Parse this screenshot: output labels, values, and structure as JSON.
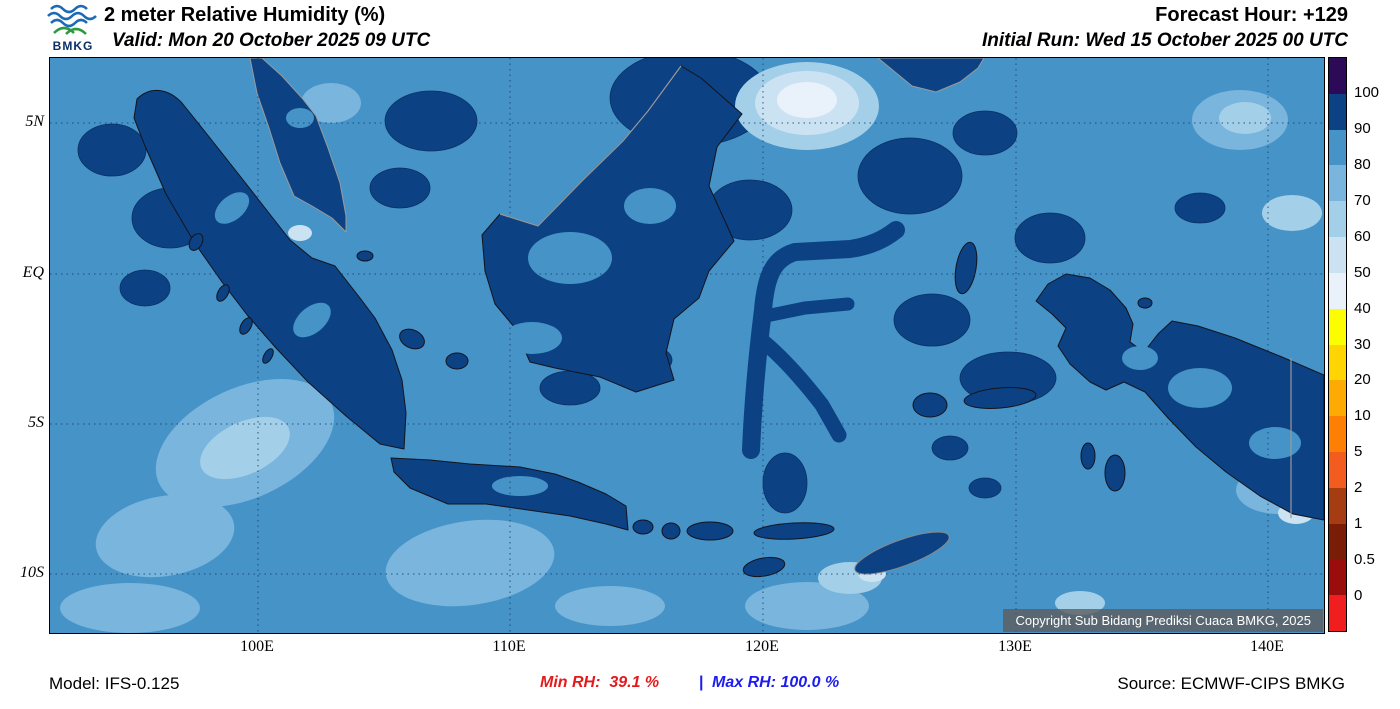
{
  "header": {
    "logo_text": "BMKG",
    "title": "2 meter Relative Humidity (%)",
    "valid": "Valid: Mon 20 October 2025 09 UTC",
    "forecast_hour": "Forecast Hour: +129",
    "initial_run": "Initial Run: Wed 15 October 2025 00 UTC"
  },
  "map": {
    "y_ticks": [
      "5N",
      "EQ",
      "5S",
      "10S"
    ],
    "x_ticks": [
      "100E",
      "110E",
      "120E",
      "130E",
      "140E"
    ],
    "copyright": "Copyright Sub Bidang Prediksi Cuaca BMKG, 2025"
  },
  "legend": {
    "tick_labels": [
      "100",
      "90",
      "80",
      "70",
      "60",
      "50",
      "40",
      "30",
      "20",
      "10",
      "5",
      "2",
      "1",
      "0.5",
      "0"
    ],
    "colors": [
      "#2d0a57",
      "#0c4183",
      "#4593c7",
      "#79b5dc",
      "#a4cfe8",
      "#cbe2f2",
      "#e9f2fa",
      "#fdfd02",
      "#ffd403",
      "#fdaa02",
      "#fd7f03",
      "#f25c1e",
      "#a63c12",
      "#7a1d06",
      "#9b0d0d",
      "#f01e1e"
    ]
  },
  "footer": {
    "model": "Model: IFS-0.125",
    "min_rh": "Min RH:  39.1 %",
    "separator": "|",
    "max_rh": "Max RH: 100.0 %",
    "source": "Source: ECMWF-CIPS BMKG"
  },
  "colors": {
    "min_rh": "#e31a1c",
    "max_rh": "#1c1cf0",
    "separator": "#1c1cf0"
  },
  "chart_data": {
    "type": "heatmap",
    "title": "2 meter Relative Humidity (%)",
    "x_tick_labels": [
      "100E",
      "110E",
      "120E",
      "130E",
      "140E"
    ],
    "y_tick_labels": [
      "5N",
      "EQ",
      "5S",
      "10S"
    ],
    "colorbar_levels": [
      100,
      90,
      80,
      70,
      60,
      50,
      40,
      30,
      20,
      10,
      5,
      2,
      1,
      0.5,
      0
    ],
    "units": "%",
    "min_rh": 39.1,
    "max_rh": 100.0
  }
}
